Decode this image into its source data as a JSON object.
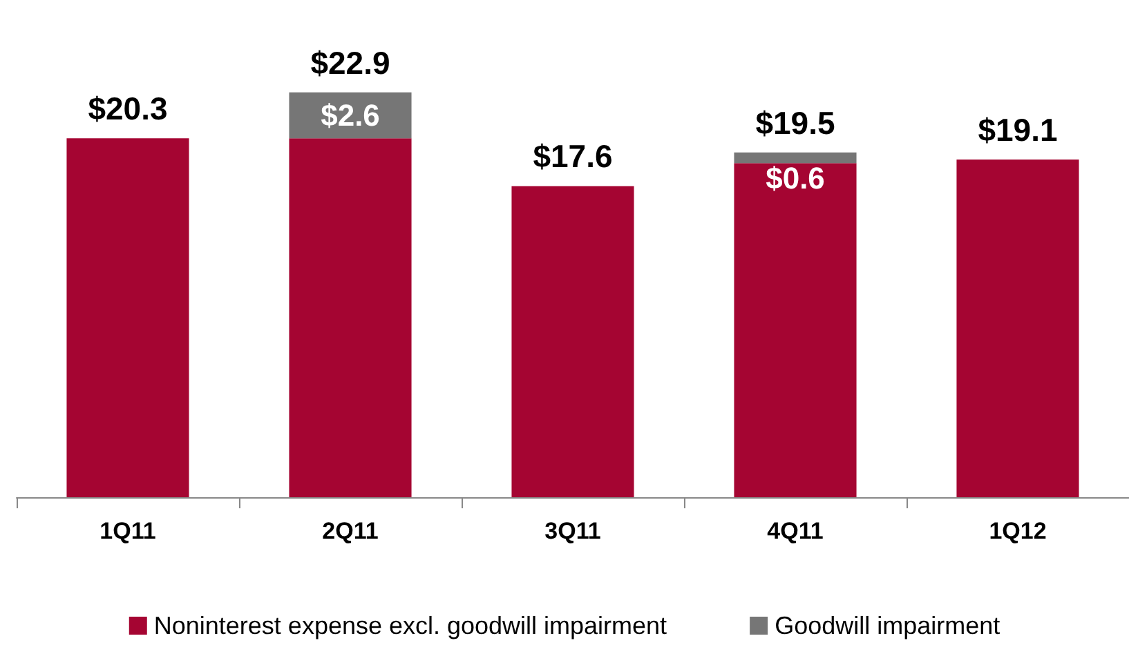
{
  "chart_data": {
    "type": "bar",
    "stacked": true,
    "categories": [
      "1Q11",
      "2Q11",
      "3Q11",
      "4Q11",
      "1Q12"
    ],
    "series": [
      {
        "name": "Noninterest expense excl. goodwill impairment",
        "color": "#a50532",
        "values": [
          20.3,
          20.3,
          17.6,
          18.9,
          19.1
        ]
      },
      {
        "name": "Goodwill impairment",
        "color": "#767676",
        "values": [
          null,
          2.6,
          null,
          0.6,
          null
        ],
        "value_labels": [
          null,
          "$2.6",
          null,
          "$0.6",
          null
        ]
      }
    ],
    "totals": [
      "$20.3",
      "$22.9",
      "$17.6",
      "$19.5",
      "$19.1"
    ],
    "legend": "bottom"
  }
}
